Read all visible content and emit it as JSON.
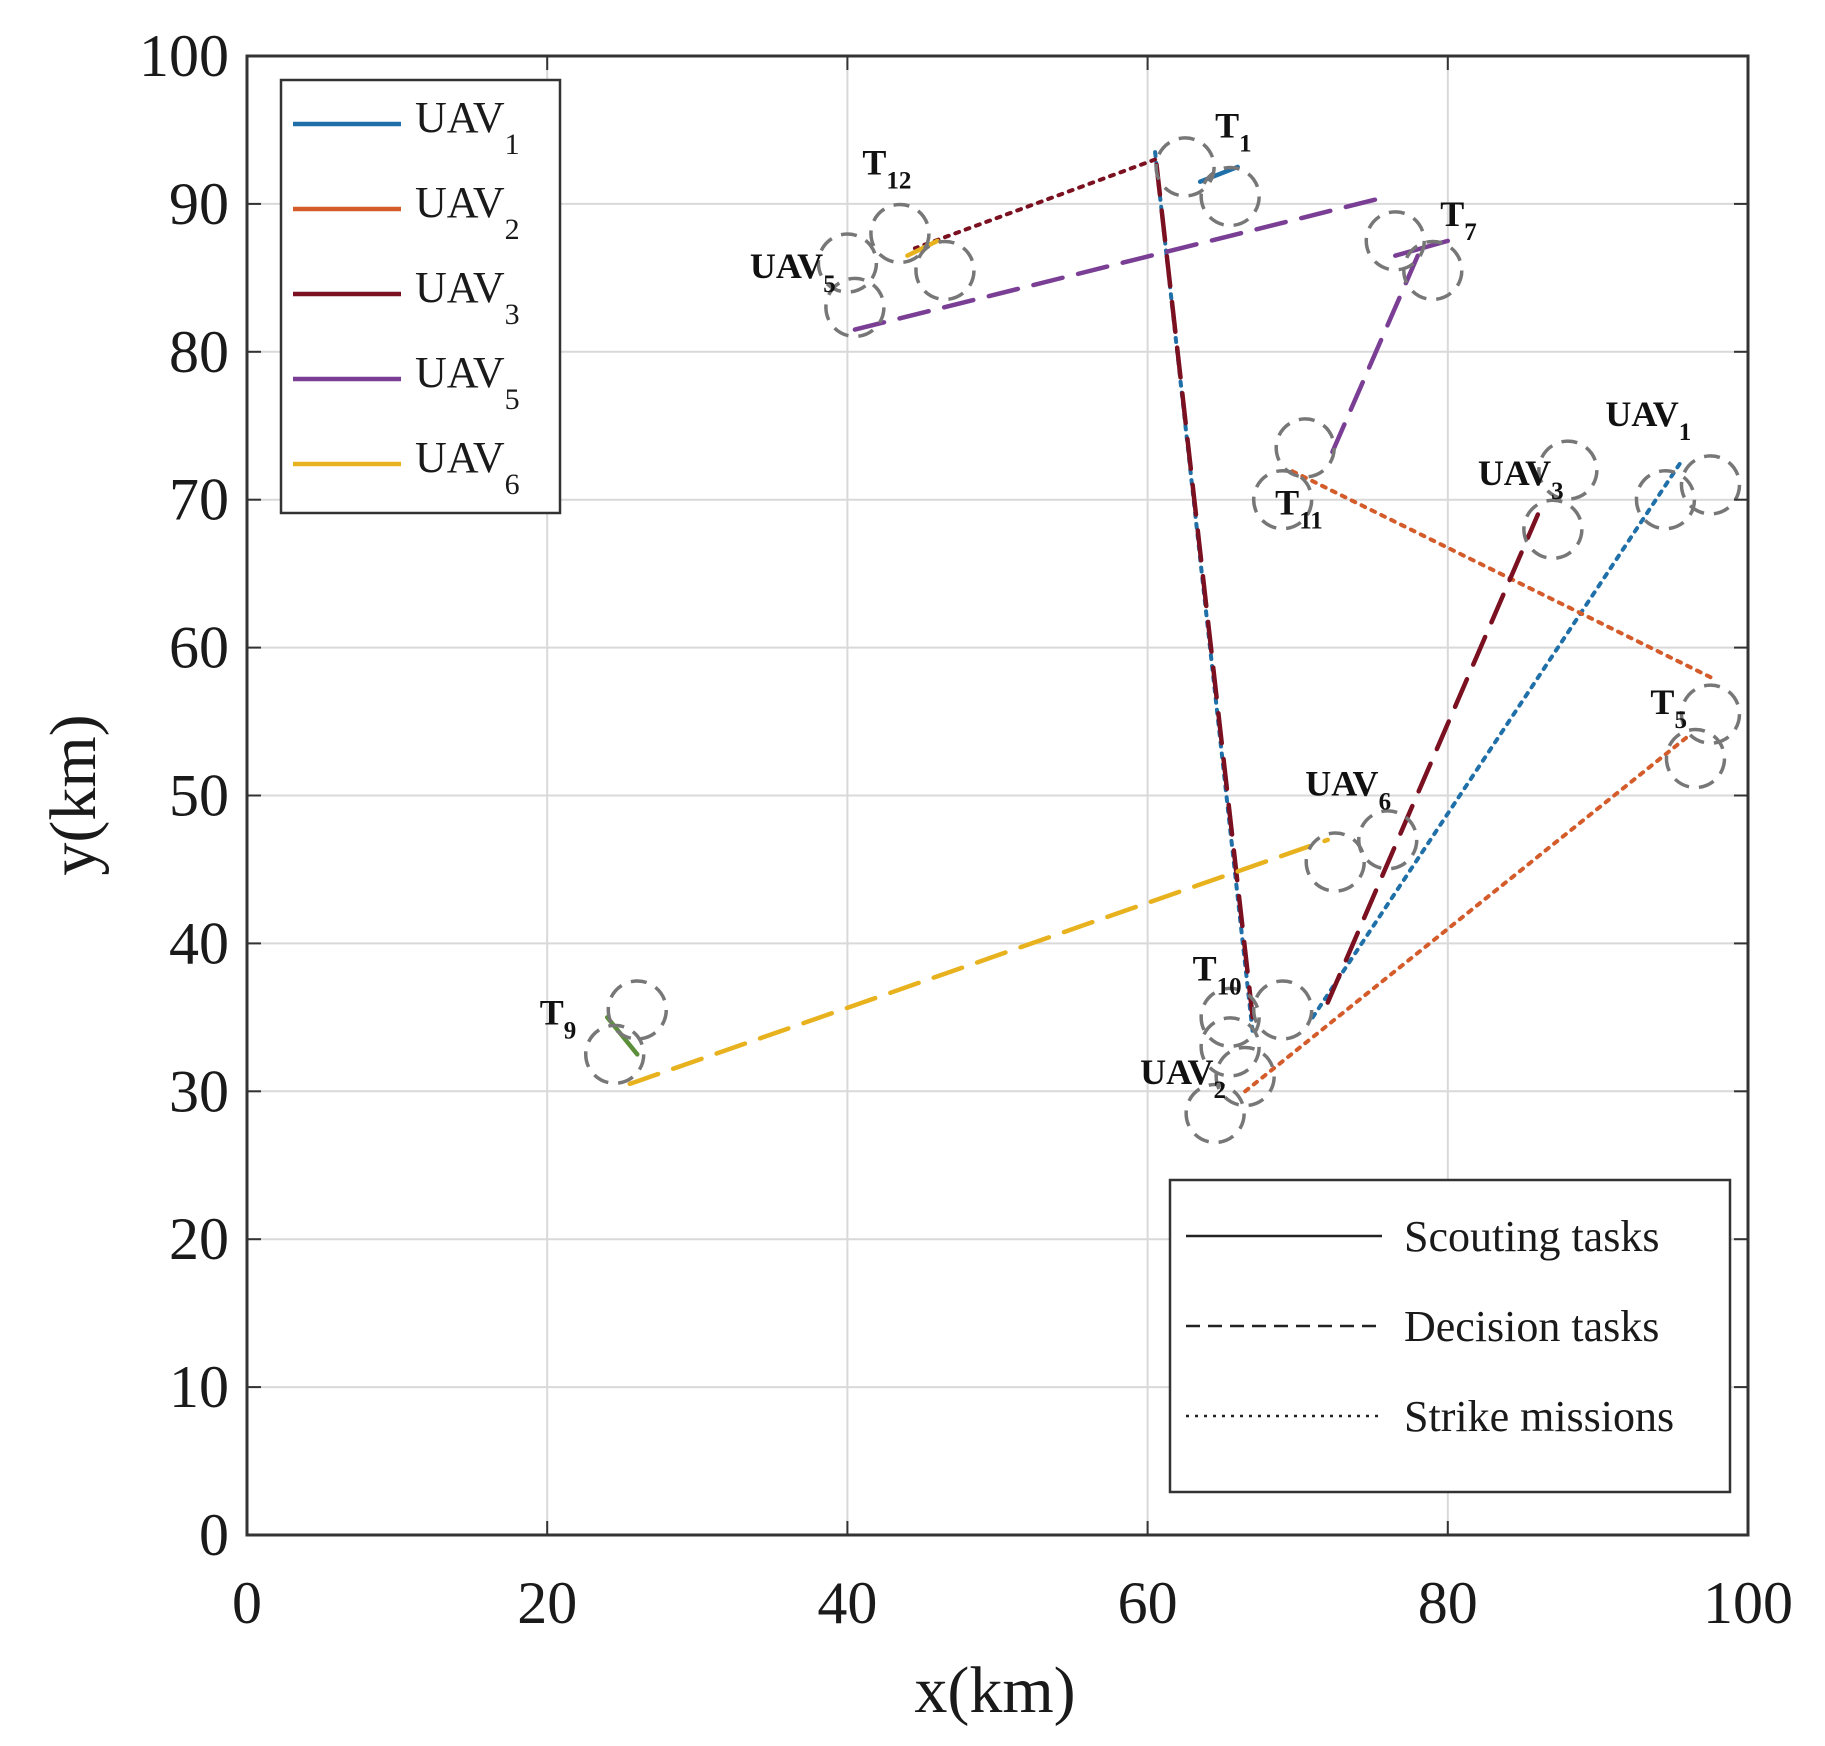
{
  "chart_data": {
    "type": "line",
    "xlabel": "x(km)",
    "ylabel": "y(km)",
    "xlim": [
      0,
      100
    ],
    "ylim": [
      0,
      100
    ],
    "xticks": [
      0,
      20,
      40,
      60,
      80,
      100
    ],
    "yticks": [
      0,
      10,
      20,
      30,
      40,
      50,
      60,
      70,
      80,
      90,
      100
    ],
    "grid": true,
    "legend_uav": {
      "placement": "top-left",
      "entries": [
        {
          "name": "UAV",
          "sub": "1",
          "color": "#1f6fa8"
        },
        {
          "name": "UAV",
          "sub": "2",
          "color": "#d45b2a"
        },
        {
          "name": "UAV",
          "sub": "3",
          "color": "#7a1020"
        },
        {
          "name": "UAV",
          "sub": "5",
          "color": "#7a3f95"
        },
        {
          "name": "UAV",
          "sub": "6",
          "color": "#e8b21f"
        }
      ]
    },
    "legend_tasks": {
      "placement": "bottom-right",
      "entries": [
        {
          "label": "Scouting tasks",
          "style": "solid"
        },
        {
          "label": "Decision tasks",
          "style": "dashed"
        },
        {
          "label": "Strike missions",
          "style": "dotted"
        }
      ]
    },
    "labels": [
      {
        "main": "T",
        "sub": "1",
        "x": 64.5,
        "y": 94.5
      },
      {
        "main": "T",
        "sub": "12",
        "x": 41.0,
        "y": 92.0
      },
      {
        "main": "T",
        "sub": "7",
        "x": 79.5,
        "y": 88.5
      },
      {
        "main": "UAV",
        "sub": "5",
        "x": 33.5,
        "y": 85.0
      },
      {
        "main": "T",
        "sub": "11",
        "x": 68.5,
        "y": 69.0
      },
      {
        "main": "UAV",
        "sub": "1",
        "x": 90.5,
        "y": 75.0
      },
      {
        "main": "UAV",
        "sub": "3",
        "x": 82.0,
        "y": 71.0
      },
      {
        "main": "T",
        "sub": "5",
        "x": 93.5,
        "y": 55.5
      },
      {
        "main": "UAV",
        "sub": "6",
        "x": 70.5,
        "y": 50.0
      },
      {
        "main": "T",
        "sub": "10",
        "x": 63.0,
        "y": 37.5
      },
      {
        "main": "T",
        "sub": "9",
        "x": 19.5,
        "y": 34.5
      },
      {
        "main": "UAV",
        "sub": "2",
        "x": 59.5,
        "y": 30.5
      }
    ],
    "circles": [
      {
        "x": 62.5,
        "y": 92.5
      },
      {
        "x": 65.5,
        "y": 90.5
      },
      {
        "x": 40.0,
        "y": 86.0
      },
      {
        "x": 43.5,
        "y": 88.0
      },
      {
        "x": 46.5,
        "y": 85.5
      },
      {
        "x": 40.5,
        "y": 83.0
      },
      {
        "x": 76.5,
        "y": 87.5
      },
      {
        "x": 79.0,
        "y": 85.5
      },
      {
        "x": 70.5,
        "y": 73.5
      },
      {
        "x": 69.0,
        "y": 70.0
      },
      {
        "x": 94.5,
        "y": 70.0
      },
      {
        "x": 97.5,
        "y": 71.0
      },
      {
        "x": 88.0,
        "y": 72.0
      },
      {
        "x": 87.0,
        "y": 68.0
      },
      {
        "x": 97.5,
        "y": 55.5
      },
      {
        "x": 96.5,
        "y": 52.5
      },
      {
        "x": 72.5,
        "y": 45.5
      },
      {
        "x": 76.0,
        "y": 47.0
      },
      {
        "x": 65.5,
        "y": 35.0
      },
      {
        "x": 69.0,
        "y": 35.5
      },
      {
        "x": 65.5,
        "y": 33.0
      },
      {
        "x": 66.5,
        "y": 31.0
      },
      {
        "x": 64.5,
        "y": 28.5
      },
      {
        "x": 26.0,
        "y": 35.5
      },
      {
        "x": 24.5,
        "y": 32.5
      }
    ],
    "series": [
      {
        "name": "UAV1",
        "task": "strike",
        "color": "#1f6fa8",
        "x": [
          71,
          95.5
        ],
        "y": [
          35,
          72.5
        ]
      },
      {
        "name": "UAV1",
        "task": "scout",
        "color": "#1f6fa8",
        "x": [
          63.5,
          66
        ],
        "y": [
          91.5,
          92.5
        ]
      },
      {
        "name": "UAV1",
        "task": "strike",
        "color": "#1f6fa8",
        "x": [
          60.5,
          67
        ],
        "y": [
          93.5,
          34
        ]
      },
      {
        "name": "UAV2",
        "task": "strike",
        "color": "#d45b2a",
        "x": [
          66.5,
          96
        ],
        "y": [
          30,
          54
        ]
      },
      {
        "name": "UAV2",
        "task": "strike",
        "color": "#d45b2a",
        "x": [
          97.5,
          69.5
        ],
        "y": [
          58,
          72
        ]
      },
      {
        "name": "UAV3",
        "task": "decision",
        "color": "#7a1020",
        "x": [
          72,
          86
        ],
        "y": [
          36,
          69
        ]
      },
      {
        "name": "UAV3",
        "task": "decision",
        "color": "#7a1020",
        "x": [
          67,
          60.5
        ],
        "y": [
          35,
          93.5
        ]
      },
      {
        "name": "UAV3",
        "task": "strike",
        "color": "#7a1020",
        "x": [
          60.5,
          44.5
        ],
        "y": [
          93,
          87
        ]
      },
      {
        "name": "UAV5",
        "task": "decision",
        "color": "#7a3f95",
        "x": [
          40.5,
          76
        ],
        "y": [
          81.5,
          90.5
        ]
      },
      {
        "name": "UAV5",
        "task": "scout",
        "color": "#7a3f95",
        "x": [
          76.5,
          80
        ],
        "y": [
          86.5,
          87.5
        ]
      },
      {
        "name": "UAV5",
        "task": "decision",
        "color": "#7a3f95",
        "x": [
          78,
          72
        ],
        "y": [
          86.5,
          72.5
        ]
      },
      {
        "name": "UAV6",
        "task": "decision",
        "color": "#e8b21f",
        "x": [
          25.5,
          72
        ],
        "y": [
          30.5,
          47
        ]
      },
      {
        "name": "UAV6",
        "task": "scout",
        "color": "#e8b21f",
        "x": [
          44,
          46
        ],
        "y": [
          86.5,
          87.5
        ]
      },
      {
        "name": "UAV6",
        "task": "scout",
        "color": "#5b8f3a",
        "x": [
          24,
          26
        ],
        "y": [
          35,
          32.5
        ]
      }
    ]
  }
}
